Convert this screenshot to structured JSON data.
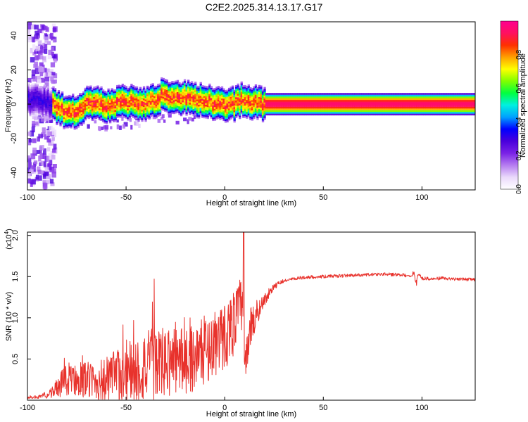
{
  "title": "C2E2.2025.314.13.17.G17",
  "chart_data": [
    {
      "type": "heatmap",
      "name": "spectrogram",
      "xlabel": "Height of straight line (km)",
      "ylabel": "Frequency (Hz)",
      "xlim": [
        -100,
        127
      ],
      "ylim": [
        -50,
        48
      ],
      "x_ticks": [
        -100,
        -50,
        0,
        50,
        100
      ],
      "y_ticks": [
        -40,
        -20,
        0,
        20,
        40
      ],
      "ridge": {
        "x": [
          -100,
          -90,
          -85,
          -80,
          -76,
          -72,
          -68,
          -64,
          -60,
          -56,
          -52,
          -48,
          -44,
          -40,
          -36,
          -32,
          -28,
          -24,
          -20,
          -16,
          -12,
          -8,
          -4,
          0,
          4,
          8,
          12,
          16,
          20,
          25,
          40,
          60,
          80,
          100,
          127
        ],
        "freq": [
          3,
          1,
          -2,
          -5,
          -4,
          -1,
          1,
          0,
          -2,
          0,
          2,
          1,
          -1,
          0,
          2,
          5,
          4,
          3,
          4,
          3,
          2,
          1,
          0,
          0,
          0,
          3,
          1,
          1,
          0,
          0,
          0,
          0,
          0,
          0,
          0
        ]
      },
      "colorbar": {
        "label": "Normalized spectral amplitude",
        "ticks": [
          0.0,
          0.2,
          0.4,
          0.6,
          0.8
        ],
        "tick_labels": [
          "0.0",
          "0.2",
          "0.4",
          "0.6",
          "0.8"
        ],
        "range": [
          0,
          1
        ],
        "colors": [
          "#ffffff",
          "#ead9fb",
          "#b57cf0",
          "#7a22e6",
          "#4a00dc",
          "#0000ff",
          "#00a0ff",
          "#00f0e0",
          "#00ff40",
          "#80ff00",
          "#ffff00",
          "#ffa000",
          "#ff3000",
          "#ff1060",
          "#ff0090"
        ]
      }
    },
    {
      "type": "line",
      "name": "snr",
      "xlabel": "Height of straight line (km)",
      "ylabel": "SNR (10 * v/v)",
      "scale_label": "(x10",
      "scale_exp": "4",
      "scale_close": ")",
      "xlim": [
        -100,
        127
      ],
      "ylim": [
        0.0,
        2.04
      ],
      "x_ticks": [
        -100,
        -50,
        0,
        50,
        100
      ],
      "y_ticks": [
        0.5,
        1.0,
        1.5,
        2.0
      ],
      "y_tick_labels": [
        "0.5",
        "1.0",
        "1.5",
        "2.0"
      ],
      "color": "#e8322c",
      "series": [
        {
          "x": [
            -100,
            -90,
            -85,
            -80,
            -75,
            -70,
            -65,
            -60,
            -55,
            -50,
            -45,
            -40,
            -35,
            -30,
            -25,
            -20,
            -15,
            -10,
            -5,
            0,
            5,
            8,
            9,
            10,
            11,
            12,
            14,
            16,
            18,
            20,
            25,
            30,
            40,
            50,
            60,
            70,
            80,
            90,
            95,
            96,
            97,
            98,
            99,
            100,
            105,
            110,
            115,
            120,
            127
          ],
          "y": [
            0.03,
            0.05,
            0.15,
            0.25,
            0.27,
            0.25,
            0.22,
            0.24,
            0.28,
            0.33,
            0.35,
            0.4,
            0.45,
            0.45,
            0.48,
            0.5,
            0.52,
            0.6,
            0.68,
            0.78,
            0.95,
            1.15,
            1.2,
            0.35,
            0.55,
            0.75,
            0.95,
            1.05,
            1.12,
            1.22,
            1.38,
            1.45,
            1.49,
            1.5,
            1.51,
            1.52,
            1.53,
            1.52,
            1.5,
            1.58,
            1.4,
            1.52,
            1.53,
            1.48,
            1.47,
            1.48,
            1.47,
            1.47,
            1.46
          ],
          "amp": [
            0.01,
            0.03,
            0.12,
            0.2,
            0.22,
            0.22,
            0.24,
            0.3,
            0.34,
            0.38,
            0.42,
            0.45,
            0.45,
            0.42,
            0.42,
            0.42,
            0.42,
            0.4,
            0.4,
            0.42,
            0.4,
            0.35,
            0.4,
            0.1,
            0.2,
            0.25,
            0.25,
            0.18,
            0.12,
            0.08,
            0.04,
            0.02,
            0.02,
            0.02,
            0.02,
            0.02,
            0.02,
            0.02,
            0.02,
            0.04,
            0.05,
            0.03,
            0.02,
            0.02,
            0.02,
            0.02,
            0.02,
            0.02,
            0.02
          ]
        }
      ]
    }
  ]
}
